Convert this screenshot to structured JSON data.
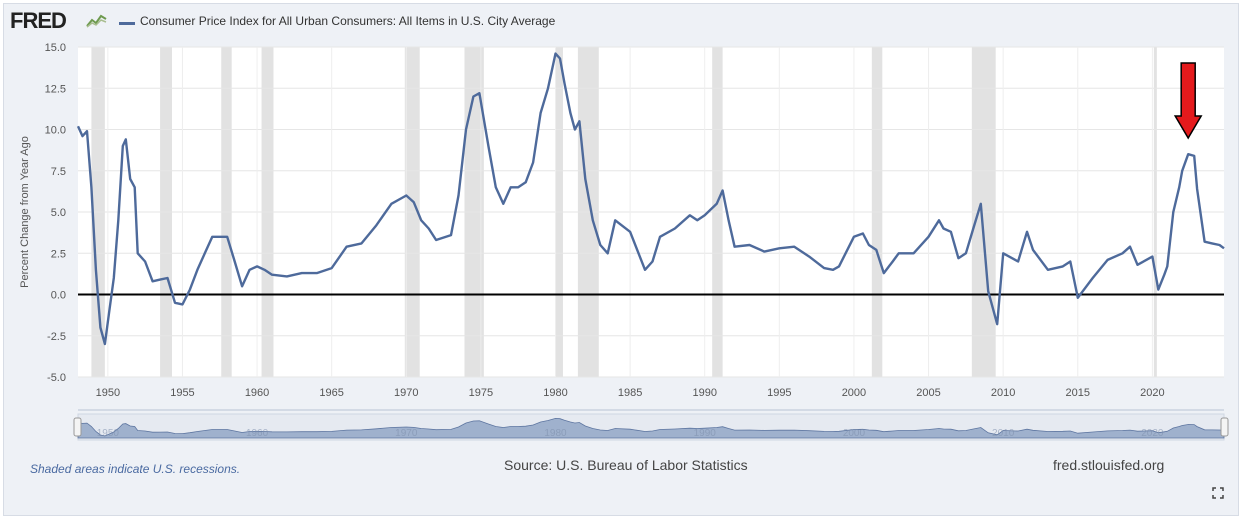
{
  "header": {
    "logo": "FRED",
    "series_label": "Consumer Price Index for All Urban Consumers: All Items in U.S. City Average"
  },
  "footer": {
    "note": "Shaded areas indicate U.S. recessions.",
    "source": "Source: U.S. Bureau of Labor Statistics",
    "site": "fred.stlouisfed.org"
  },
  "icons": [
    "fred-chart-icon",
    "fullscreen-icon"
  ],
  "colors": {
    "series": "#4e6a9b",
    "recession": "#e2e2e2",
    "zero_line": "#000000",
    "arrow": "#e41a1c",
    "background": "#eef1f6"
  },
  "chart_data": {
    "type": "line",
    "title": "",
    "xlabel": "",
    "ylabel": "Percent Change from Year Ago",
    "xlim": [
      1948.0,
      2024.8
    ],
    "ylim": [
      -5.0,
      15.0
    ],
    "x_ticks": [
      1950,
      1955,
      1960,
      1965,
      1970,
      1975,
      1980,
      1985,
      1990,
      1995,
      2000,
      2005,
      2010,
      2015,
      2020
    ],
    "y_ticks": [
      -5.0,
      -2.5,
      0.0,
      2.5,
      5.0,
      7.5,
      10.0,
      12.5,
      15.0
    ],
    "y_tick_labels": [
      "-5.0",
      "-2.5",
      "0.0",
      "2.5",
      "5.0",
      "7.5",
      "10.0",
      "12.5",
      "15.0"
    ],
    "reference_line": 0.0,
    "recessions": [
      [
        1948.9,
        1949.8
      ],
      [
        1953.5,
        1954.3
      ],
      [
        1957.6,
        1958.3
      ],
      [
        1960.3,
        1961.1
      ],
      [
        1969.9,
        1970.9
      ],
      [
        1973.9,
        1975.2
      ],
      [
        1980.0,
        1980.5
      ],
      [
        1981.5,
        1982.9
      ],
      [
        1990.5,
        1991.2
      ],
      [
        2001.2,
        2001.9
      ],
      [
        2007.9,
        2009.5
      ],
      [
        2020.1,
        2020.3
      ]
    ],
    "annotation": {
      "type": "arrow",
      "x": 2022.4,
      "y": 9.0,
      "color": "#e41a1c"
    },
    "navigator_ticks": [
      1950,
      1960,
      1970,
      1980,
      1990,
      2000,
      2010,
      2020
    ],
    "series": [
      {
        "name": "Consumer Price Index for All Urban Consumers: All Items in U.S. City Average",
        "x": [
          1948.0,
          1948.3,
          1948.6,
          1948.9,
          1949.2,
          1949.5,
          1949.8,
          1950.1,
          1950.4,
          1950.7,
          1951.0,
          1951.2,
          1951.5,
          1951.8,
          1952.0,
          1952.5,
          1953.0,
          1953.5,
          1954.0,
          1954.5,
          1955.0,
          1955.5,
          1956.0,
          1956.5,
          1957.0,
          1957.5,
          1958.0,
          1958.5,
          1959.0,
          1959.5,
          1960.0,
          1960.5,
          1961.0,
          1962.0,
          1963.0,
          1964.0,
          1965.0,
          1966.0,
          1967.0,
          1968.0,
          1969.0,
          1970.0,
          1970.5,
          1971.0,
          1971.5,
          1972.0,
          1973.0,
          1973.5,
          1974.0,
          1974.5,
          1974.9,
          1975.5,
          1976.0,
          1976.5,
          1977.0,
          1977.5,
          1978.0,
          1978.5,
          1979.0,
          1979.5,
          1980.0,
          1980.3,
          1980.6,
          1981.0,
          1981.3,
          1981.6,
          1982.0,
          1982.5,
          1983.0,
          1983.5,
          1984.0,
          1985.0,
          1986.0,
          1986.5,
          1987.0,
          1988.0,
          1989.0,
          1989.5,
          1990.0,
          1990.8,
          1991.2,
          1991.6,
          1992.0,
          1993.0,
          1994.0,
          1995.0,
          1996.0,
          1997.0,
          1998.0,
          1998.6,
          1999.0,
          2000.0,
          2000.6,
          2001.0,
          2001.5,
          2002.0,
          2002.6,
          2003.0,
          2004.0,
          2005.0,
          2005.7,
          2006.0,
          2006.5,
          2007.0,
          2007.5,
          2008.0,
          2008.5,
          2009.0,
          2009.6,
          2010.0,
          2011.0,
          2011.6,
          2012.0,
          2013.0,
          2014.0,
          2014.5,
          2015.0,
          2016.0,
          2017.0,
          2018.0,
          2018.5,
          2019.0,
          2020.0,
          2020.4,
          2020.8,
          2021.0,
          2021.4,
          2021.8,
          2022.0,
          2022.4,
          2022.8,
          2023.0,
          2023.5,
          2024.0,
          2024.5,
          2024.8
        ],
        "values": [
          10.2,
          9.6,
          9.9,
          6.5,
          1.5,
          -2.0,
          -3.0,
          -1.0,
          1.0,
          4.5,
          9.0,
          9.4,
          7.0,
          6.5,
          2.5,
          2.0,
          0.8,
          0.9,
          1.0,
          -0.5,
          -0.6,
          0.3,
          1.5,
          2.5,
          3.5,
          3.5,
          3.5,
          2.0,
          0.5,
          1.5,
          1.7,
          1.5,
          1.2,
          1.1,
          1.3,
          1.3,
          1.6,
          2.9,
          3.1,
          4.2,
          5.5,
          6.0,
          5.6,
          4.5,
          4.0,
          3.3,
          3.6,
          6.0,
          10.0,
          12.0,
          12.2,
          9.0,
          6.5,
          5.5,
          6.5,
          6.5,
          6.8,
          8.0,
          11.0,
          12.5,
          14.6,
          14.3,
          12.8,
          11.0,
          10.0,
          10.5,
          7.0,
          4.5,
          3.0,
          2.5,
          4.5,
          3.8,
          1.5,
          2.0,
          3.5,
          4.0,
          4.8,
          4.5,
          4.8,
          5.5,
          6.3,
          4.5,
          2.9,
          3.0,
          2.6,
          2.8,
          2.9,
          2.3,
          1.6,
          1.5,
          1.7,
          3.5,
          3.7,
          3.0,
          2.7,
          1.3,
          2.0,
          2.5,
          2.5,
          3.5,
          4.5,
          4.0,
          3.8,
          2.2,
          2.5,
          4.0,
          5.5,
          0.2,
          -1.8,
          2.5,
          2.0,
          3.8,
          2.7,
          1.5,
          1.7,
          2.0,
          -0.2,
          1.0,
          2.1,
          2.5,
          2.9,
          1.8,
          2.3,
          0.3,
          1.2,
          1.7,
          5.0,
          6.5,
          7.5,
          8.5,
          8.4,
          6.4,
          3.2,
          3.1,
          3.0,
          2.8
        ]
      }
    ]
  }
}
